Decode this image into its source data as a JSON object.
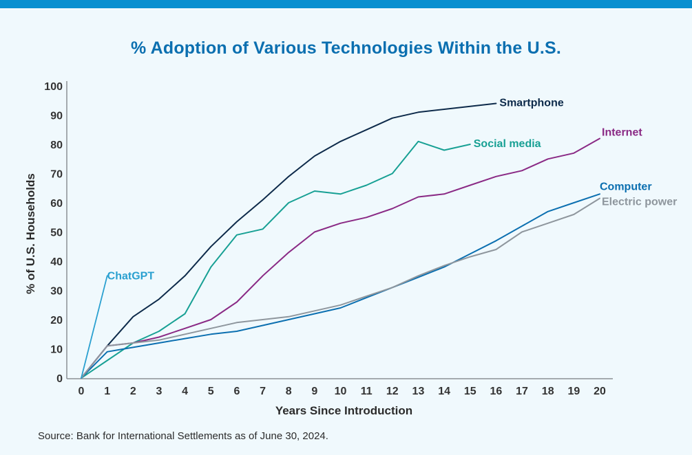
{
  "chart_data": {
    "type": "line",
    "title": "% Adoption of Various Technologies Within the U.S.",
    "xlabel": "Years Since Introduction",
    "ylabel": "% of U.S. Households",
    "xlim": [
      0,
      20
    ],
    "ylim": [
      0,
      100
    ],
    "x_ticks": [
      0,
      1,
      2,
      3,
      4,
      5,
      6,
      7,
      8,
      9,
      10,
      11,
      12,
      13,
      14,
      15,
      16,
      17,
      18,
      19,
      20
    ],
    "y_ticks": [
      0,
      10,
      20,
      30,
      40,
      50,
      60,
      70,
      80,
      90,
      100
    ],
    "grid": false,
    "series": [
      {
        "name": "Smartphone",
        "color": "#0d2a4a",
        "x": [
          0,
          1,
          2,
          3,
          4,
          5,
          6,
          7,
          8,
          9,
          10,
          11,
          12,
          13,
          14,
          15,
          16
        ],
        "values": [
          0,
          11,
          21,
          27,
          35,
          45,
          53.5,
          61,
          69,
          76,
          81,
          85,
          89,
          91,
          92,
          93,
          94
        ]
      },
      {
        "name": "Social media",
        "color": "#17a094",
        "x": [
          0,
          1,
          2,
          3,
          4,
          5,
          6,
          7,
          8,
          9,
          10,
          11,
          12,
          13,
          14,
          15
        ],
        "values": [
          0,
          6,
          12,
          16,
          22,
          38,
          49,
          51,
          60,
          64,
          63,
          66,
          70,
          81,
          78,
          80
        ]
      },
      {
        "name": "Internet",
        "color": "#8a2a85",
        "x": [
          0,
          1,
          2,
          3,
          4,
          5,
          6,
          7,
          8,
          9,
          10,
          11,
          12,
          13,
          14,
          15,
          16,
          17,
          18,
          19,
          20
        ],
        "values": [
          0,
          11,
          12,
          14,
          17,
          20,
          26,
          35,
          43,
          50,
          53,
          55,
          58,
          62,
          63,
          66,
          69,
          71,
          75,
          77,
          82
        ]
      },
      {
        "name": "Computer",
        "color": "#0b6fb0",
        "x": [
          0,
          1,
          2,
          3,
          4,
          5,
          6,
          7,
          8,
          9,
          10,
          11,
          12,
          13,
          14,
          15,
          16,
          17,
          18,
          19,
          20
        ],
        "values": [
          0,
          9,
          10.5,
          12,
          13.5,
          15,
          16,
          18,
          20,
          22,
          24,
          27.5,
          31,
          34.5,
          38,
          42.5,
          47,
          52,
          57,
          60,
          63
        ]
      },
      {
        "name": "Electric power",
        "color": "#8e969d",
        "x": [
          0,
          1,
          2,
          3,
          4,
          5,
          6,
          7,
          8,
          9,
          10,
          11,
          12,
          13,
          14,
          15,
          16,
          17,
          18,
          19,
          20
        ],
        "values": [
          0,
          11,
          12,
          13,
          15,
          17,
          19,
          20,
          21,
          23,
          25,
          28,
          31,
          35,
          38.5,
          41.5,
          44,
          50,
          53,
          56,
          61.5
        ]
      },
      {
        "name": "ChatGPT",
        "color": "#2aa0d0",
        "x": [
          0,
          1
        ],
        "values": [
          0,
          35
        ]
      }
    ],
    "source": "Source: Bank for International Settlements as of June 30, 2024."
  }
}
